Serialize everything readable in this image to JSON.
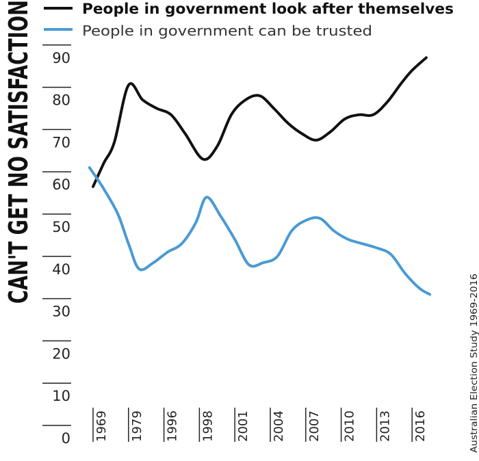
{
  "chart_data": {
    "type": "line",
    "title": "CAN'T GET NO SATISFACTION",
    "source": "Australian Election Study 1969-2016",
    "categories": [
      "1969",
      "1979",
      "1996",
      "1998",
      "2001",
      "2004",
      "2007",
      "2010",
      "2013",
      "2016"
    ],
    "ylim": [
      0,
      90
    ],
    "y_ticks": [
      90,
      80,
      70,
      60,
      50,
      40,
      30,
      20,
      10,
      0
    ],
    "legend_placement": "top",
    "grid": false,
    "series": [
      {
        "name": "People in government look after themselves",
        "color": "#111111",
        "points": [
          [
            0.0,
            56.5
          ],
          [
            0.3,
            62
          ],
          [
            0.6,
            67
          ],
          [
            1.0,
            80.5
          ],
          [
            1.4,
            77
          ],
          [
            1.8,
            75
          ],
          [
            2.2,
            73.5
          ],
          [
            2.6,
            69
          ],
          [
            3.1,
            63
          ],
          [
            3.5,
            66
          ],
          [
            3.9,
            73.5
          ],
          [
            4.3,
            77
          ],
          [
            4.7,
            78
          ],
          [
            5.1,
            75
          ],
          [
            5.5,
            71.5
          ],
          [
            5.9,
            69
          ],
          [
            6.3,
            67.5
          ],
          [
            6.7,
            69.5
          ],
          [
            7.1,
            72.5
          ],
          [
            7.5,
            73.5
          ],
          [
            7.9,
            73.5
          ],
          [
            8.3,
            76.5
          ],
          [
            8.7,
            81
          ],
          [
            9.0,
            84
          ],
          [
            9.4,
            87
          ]
        ]
      },
      {
        "name": "People in government can be trusted",
        "color": "#4a9ad4",
        "points": [
          [
            -0.1,
            61
          ],
          [
            0.3,
            56
          ],
          [
            0.7,
            50
          ],
          [
            1.0,
            43
          ],
          [
            1.3,
            37
          ],
          [
            1.7,
            38.5
          ],
          [
            2.1,
            41
          ],
          [
            2.5,
            43
          ],
          [
            2.9,
            48
          ],
          [
            3.2,
            54
          ],
          [
            3.6,
            49.5
          ],
          [
            4.0,
            44
          ],
          [
            4.4,
            38
          ],
          [
            4.8,
            38.5
          ],
          [
            5.2,
            40
          ],
          [
            5.6,
            46
          ],
          [
            6.0,
            48.5
          ],
          [
            6.4,
            49
          ],
          [
            6.8,
            46
          ],
          [
            7.2,
            44
          ],
          [
            7.6,
            43
          ],
          [
            8.0,
            42
          ],
          [
            8.4,
            40.5
          ],
          [
            8.8,
            36
          ],
          [
            9.2,
            32.5
          ],
          [
            9.5,
            31
          ]
        ]
      }
    ]
  }
}
